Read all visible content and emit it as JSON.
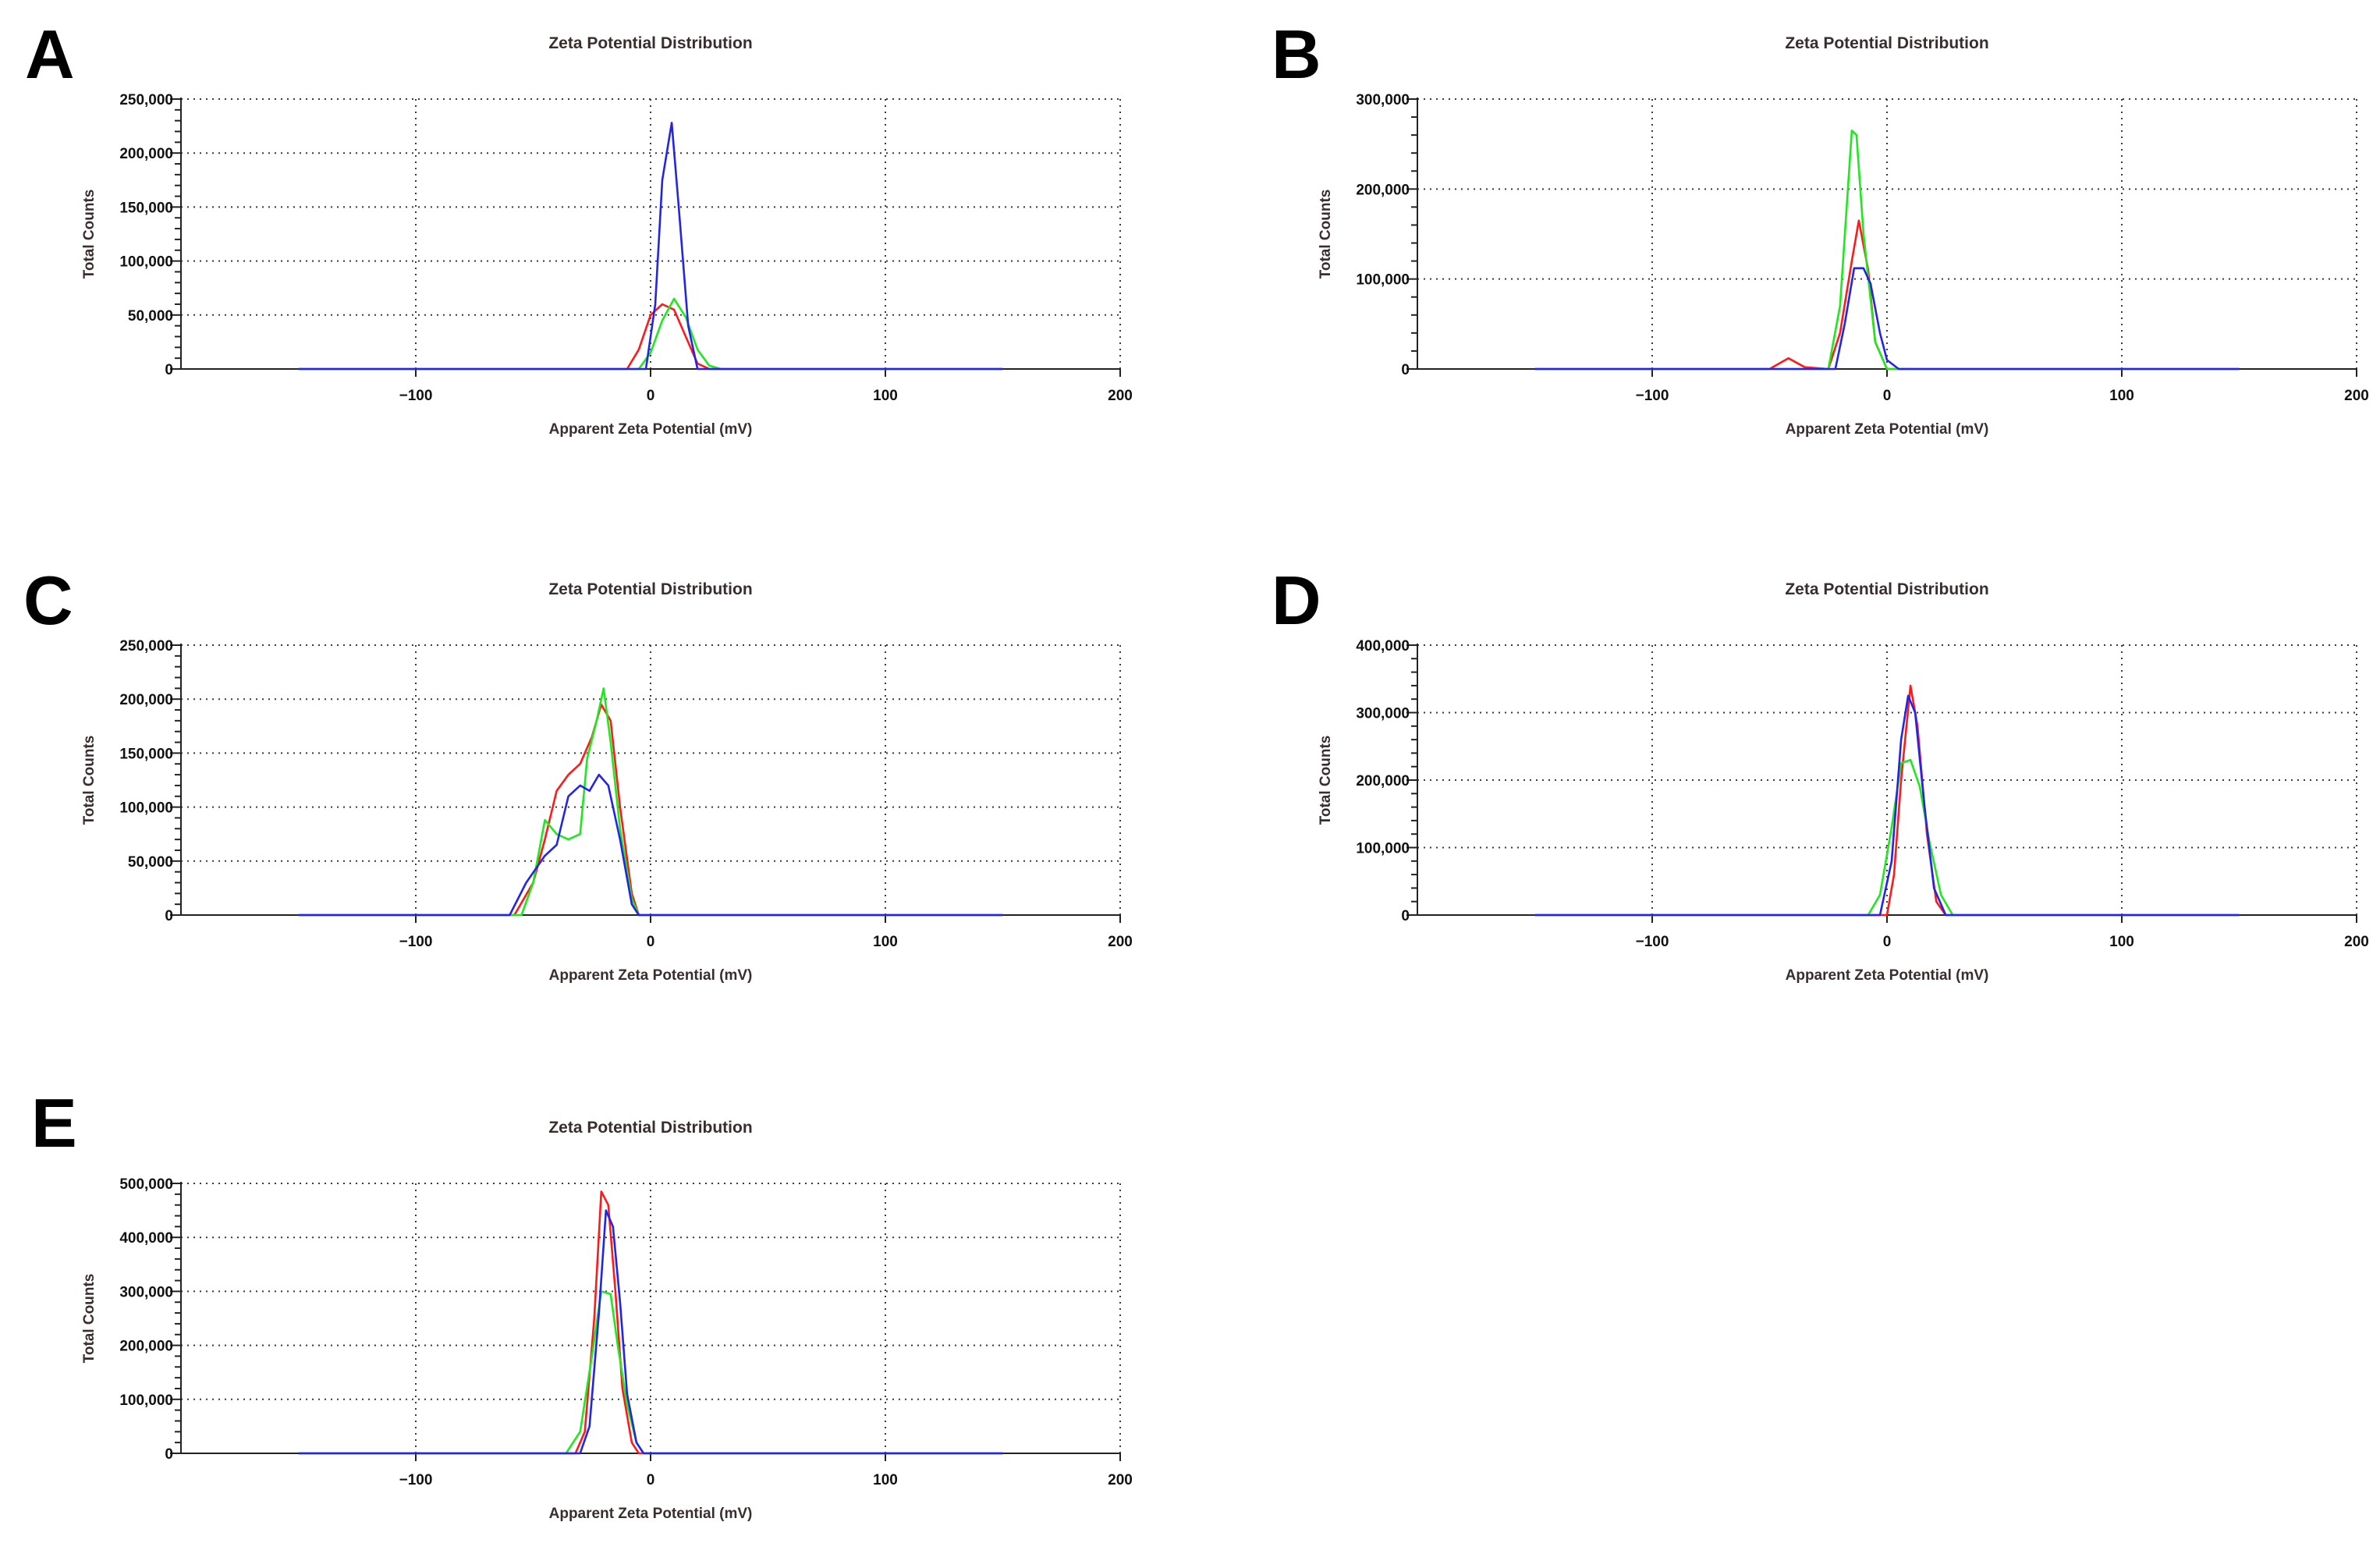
{
  "figure": {
    "colors": {
      "red": "#ff1a1a",
      "green": "#1ee81e",
      "blue": "#2424e6",
      "text": "#3a2d2d",
      "grid": "#3a3a3a"
    }
  },
  "chart_data": [
    {
      "panel": "A",
      "type": "line",
      "title": "Zeta Potential Distribution",
      "xlabel": "Apparent Zeta Potential (mV)",
      "ylabel": "Total Counts",
      "xlim": [
        -200,
        200
      ],
      "ylim": [
        0,
        250000
      ],
      "xticks": [
        -100,
        0,
        100,
        200
      ],
      "yticks": [
        0,
        50000,
        100000,
        150000,
        200000,
        250000
      ],
      "xtick_labels": [
        "−100",
        "0",
        "100",
        "200"
      ],
      "ytick_labels": [
        "0",
        "50,000",
        "100,000",
        "150,000",
        "200,000",
        "250,000"
      ],
      "grid": true,
      "series": [
        {
          "name": "red",
          "color": "#ff1a1a",
          "x": [
            -150,
            -10,
            -5,
            0,
            5,
            10,
            15,
            20,
            25,
            150
          ],
          "y": [
            0,
            0,
            18000,
            50000,
            60000,
            55000,
            30000,
            5000,
            0,
            0
          ]
        },
        {
          "name": "green",
          "color": "#1ee81e",
          "x": [
            -150,
            -5,
            0,
            5,
            10,
            15,
            20,
            25,
            30,
            150
          ],
          "y": [
            0,
            0,
            15000,
            45000,
            65000,
            48000,
            18000,
            3000,
            0,
            0
          ]
        },
        {
          "name": "blue",
          "color": "#2424e6",
          "x": [
            -150,
            -2,
            2,
            5,
            9,
            12,
            16,
            20,
            150
          ],
          "y": [
            0,
            0,
            60000,
            175000,
            228000,
            150000,
            40000,
            0,
            0
          ]
        }
      ]
    },
    {
      "panel": "B",
      "type": "line",
      "title": "Zeta Potential Distribution",
      "xlabel": "Apparent Zeta Potential (mV)",
      "ylabel": "Total Counts",
      "xlim": [
        -200,
        200
      ],
      "ylim": [
        0,
        300000
      ],
      "xticks": [
        -100,
        0,
        100,
        200
      ],
      "yticks": [
        0,
        100000,
        200000,
        300000
      ],
      "xtick_labels": [
        "−100",
        "0",
        "100",
        "200"
      ],
      "ytick_labels": [
        "0",
        "100,000",
        "200,000",
        "300,000"
      ],
      "grid": true,
      "series": [
        {
          "name": "red",
          "color": "#ff1a1a",
          "x": [
            -150,
            -50,
            -42,
            -35,
            -25,
            -20,
            -15,
            -12,
            -8,
            -5,
            0,
            150
          ],
          "y": [
            0,
            0,
            12000,
            2000,
            0,
            40000,
            120000,
            165000,
            110000,
            30000,
            0,
            0
          ]
        },
        {
          "name": "green",
          "color": "#1ee81e",
          "x": [
            -150,
            -25,
            -20,
            -15,
            -13,
            -10,
            -5,
            0,
            150
          ],
          "y": [
            0,
            0,
            70000,
            265000,
            260000,
            150000,
            30000,
            0,
            0
          ]
        },
        {
          "name": "blue",
          "color": "#2424e6",
          "x": [
            -150,
            -22,
            -18,
            -14,
            -10,
            -7,
            -3,
            0,
            5,
            150
          ],
          "y": [
            0,
            0,
            50000,
            112000,
            112000,
            95000,
            40000,
            10000,
            0,
            0
          ]
        }
      ]
    },
    {
      "panel": "C",
      "type": "line",
      "title": "Zeta Potential Distribution",
      "xlabel": "Apparent Zeta Potential (mV)",
      "ylabel": "Total Counts",
      "xlim": [
        -200,
        200
      ],
      "ylim": [
        0,
        250000
      ],
      "xticks": [
        -100,
        0,
        100,
        200
      ],
      "yticks": [
        0,
        50000,
        100000,
        150000,
        200000,
        250000
      ],
      "xtick_labels": [
        "−100",
        "0",
        "100",
        "200"
      ],
      "ytick_labels": [
        "0",
        "50,000",
        "100,000",
        "150,000",
        "200,000",
        "250,000"
      ],
      "grid": true,
      "series": [
        {
          "name": "red",
          "color": "#ff1a1a",
          "x": [
            -150,
            -58,
            -50,
            -45,
            -40,
            -35,
            -30,
            -25,
            -21,
            -17,
            -13,
            -8,
            -5,
            150
          ],
          "y": [
            0,
            0,
            30000,
            70000,
            115000,
            130000,
            140000,
            165000,
            195000,
            180000,
            100000,
            20000,
            0,
            0
          ]
        },
        {
          "name": "green",
          "color": "#1ee81e",
          "x": [
            -150,
            -55,
            -50,
            -45,
            -40,
            -35,
            -30,
            -27,
            -23,
            -20,
            -17,
            -13,
            -8,
            -5,
            150
          ],
          "y": [
            0,
            0,
            30000,
            88000,
            75000,
            70000,
            75000,
            145000,
            180000,
            210000,
            160000,
            80000,
            15000,
            0,
            0
          ]
        },
        {
          "name": "blue",
          "color": "#2424e6",
          "x": [
            -150,
            -60,
            -53,
            -45,
            -40,
            -35,
            -30,
            -26,
            -22,
            -18,
            -13,
            -8,
            -5,
            150
          ],
          "y": [
            0,
            0,
            30000,
            55000,
            65000,
            110000,
            120000,
            115000,
            130000,
            120000,
            70000,
            10000,
            0,
            0
          ]
        }
      ]
    },
    {
      "panel": "D",
      "type": "line",
      "title": "Zeta Potential Distribution",
      "xlabel": "Apparent Zeta Potential (mV)",
      "ylabel": "Total Counts",
      "xlim": [
        -200,
        200
      ],
      "ylim": [
        0,
        400000
      ],
      "xticks": [
        -100,
        0,
        100,
        200
      ],
      "yticks": [
        0,
        100000,
        200000,
        300000,
        400000
      ],
      "xtick_labels": [
        "−100",
        "0",
        "100",
        "200"
      ],
      "ytick_labels": [
        "0",
        "100,000",
        "200,000",
        "300,000",
        "400,000"
      ],
      "grid": true,
      "series": [
        {
          "name": "red",
          "color": "#ff1a1a",
          "x": [
            -150,
            0,
            3,
            6,
            10,
            13,
            17,
            21,
            25,
            150
          ],
          "y": [
            0,
            0,
            60000,
            200000,
            340000,
            280000,
            120000,
            20000,
            0,
            0
          ]
        },
        {
          "name": "green",
          "color": "#1ee81e",
          "x": [
            -150,
            -8,
            -3,
            2,
            6,
            10,
            14,
            18,
            23,
            28,
            150
          ],
          "y": [
            0,
            0,
            30000,
            130000,
            225000,
            230000,
            190000,
            110000,
            30000,
            0,
            0
          ]
        },
        {
          "name": "blue",
          "color": "#2424e6",
          "x": [
            -150,
            -3,
            2,
            6,
            9,
            12,
            16,
            20,
            25,
            150
          ],
          "y": [
            0,
            0,
            80000,
            260000,
            325000,
            300000,
            160000,
            40000,
            0,
            0
          ]
        }
      ]
    },
    {
      "panel": "E",
      "type": "line",
      "title": "Zeta Potential Distribution",
      "xlabel": "Apparent Zeta Potential (mV)",
      "ylabel": "Total Counts",
      "xlim": [
        -200,
        200
      ],
      "ylim": [
        0,
        500000
      ],
      "xticks": [
        -100,
        0,
        100,
        200
      ],
      "yticks": [
        0,
        100000,
        200000,
        300000,
        400000,
        500000
      ],
      "xtick_labels": [
        "−100",
        "0",
        "100",
        "200"
      ],
      "ytick_labels": [
        "0",
        "100,000",
        "200,000",
        "300,000",
        "400,000",
        "500,000"
      ],
      "grid": true,
      "series": [
        {
          "name": "red",
          "color": "#ff1a1a",
          "x": [
            -150,
            -32,
            -28,
            -24,
            -21,
            -18,
            -15,
            -12,
            -8,
            -5,
            150
          ],
          "y": [
            0,
            0,
            40000,
            250000,
            485000,
            460000,
            300000,
            120000,
            20000,
            0,
            0
          ]
        },
        {
          "name": "green",
          "color": "#1ee81e",
          "x": [
            -150,
            -36,
            -30,
            -25,
            -21,
            -17,
            -14,
            -10,
            -6,
            -3,
            150
          ],
          "y": [
            0,
            0,
            40000,
            180000,
            300000,
            295000,
            200000,
            90000,
            20000,
            0,
            0
          ]
        },
        {
          "name": "blue",
          "color": "#2424e6",
          "x": [
            -150,
            -30,
            -26,
            -22,
            -19,
            -16,
            -13,
            -10,
            -6,
            -3,
            150
          ],
          "y": [
            0,
            0,
            50000,
            260000,
            450000,
            420000,
            280000,
            110000,
            20000,
            0,
            0
          ]
        }
      ]
    }
  ]
}
